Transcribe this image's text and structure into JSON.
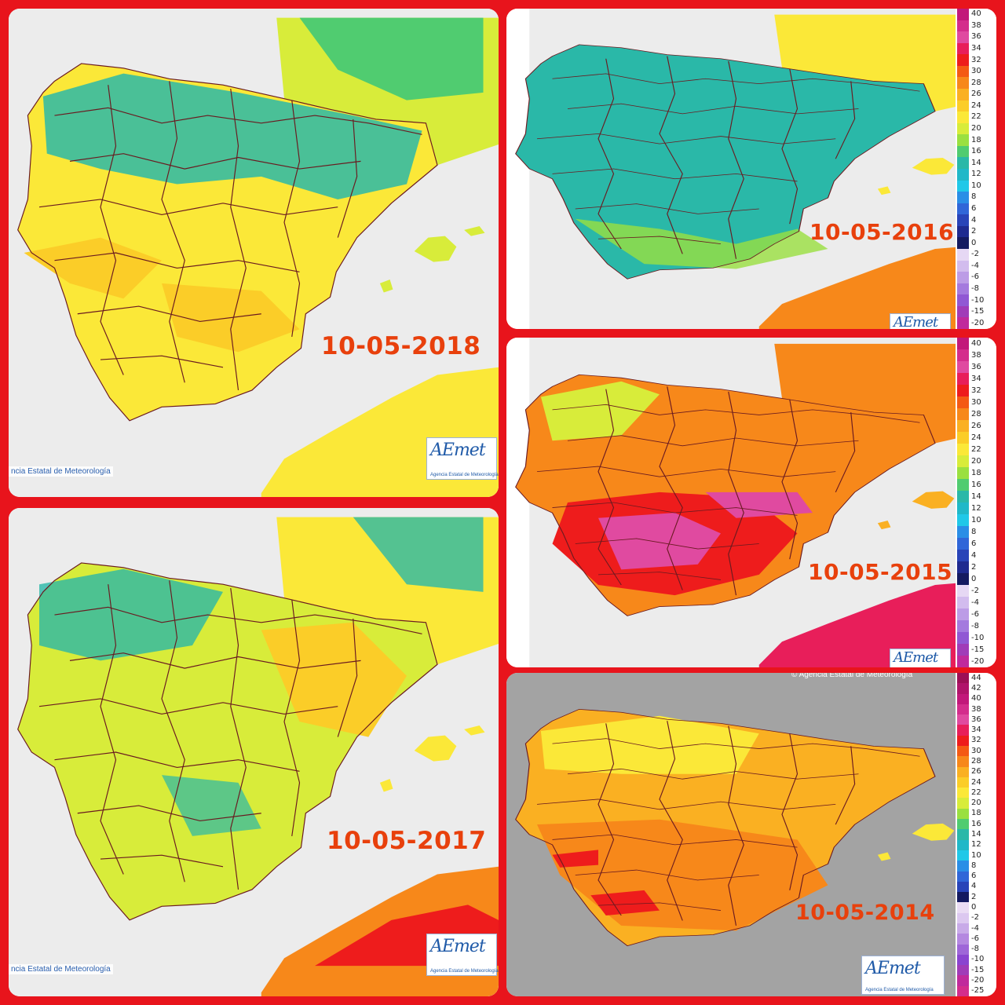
{
  "panels": {
    "p2018": {
      "date": "10-05-2018",
      "credit": "ncia Estatal de Meteorología",
      "logo": "AEmet",
      "logo_sub": "Agencia Estatal de Meteorología"
    },
    "p2016": {
      "date": "10-05-2016",
      "logo": "AEmet"
    },
    "p2015": {
      "date": "10-05-2015",
      "logo": "AEmet"
    },
    "p2017": {
      "date": "10-05-2017",
      "credit": "ncia Estatal de Meteorología",
      "logo": "AEmet",
      "logo_sub": "Agencia Estatal de Meteorología"
    },
    "p2014": {
      "date": "10-05-2014",
      "credit": "© Agencia Estatal de Meteorología",
      "logo": "AEmet",
      "logo_sub": "Agencia Estatal de Meteorología"
    }
  },
  "legend_a": {
    "labels": [
      "40",
      "38",
      "36",
      "34",
      "32",
      "30",
      "28",
      "26",
      "24",
      "22",
      "20",
      "18",
      "16",
      "14",
      "12",
      "10",
      "8",
      "6",
      "4",
      "2",
      "0",
      "-2",
      "-4",
      "-6",
      "-8",
      "-10",
      "-15",
      "-20"
    ],
    "colors": [
      "#c2187a",
      "#d42d8c",
      "#e04aa0",
      "#e81e5a",
      "#ee1c1c",
      "#f45a14",
      "#f7881a",
      "#fab022",
      "#fbcd28",
      "#fbe838",
      "#d8ec3a",
      "#9ae040",
      "#50cc70",
      "#2ab8a8",
      "#20b8c8",
      "#20c8e8",
      "#2a8ee6",
      "#3066d8",
      "#2844b8",
      "#1e2a90",
      "#141a60",
      "#e6d8f4",
      "#d2bcee",
      "#bc9ce6",
      "#a47ade",
      "#9058d4",
      "#a03cb8",
      "#c02a9c"
    ]
  },
  "legend_b": {
    "labels": [
      "44",
      "42",
      "40",
      "38",
      "36",
      "34",
      "32",
      "30",
      "28",
      "26",
      "24",
      "22",
      "20",
      "18",
      "16",
      "14",
      "12",
      "10",
      "8",
      "6",
      "4",
      "2",
      "0",
      "-2",
      "-4",
      "-6",
      "-8",
      "-10",
      "-15",
      "-20",
      "-25"
    ],
    "colors": [
      "#9c1056",
      "#b0146a",
      "#c2187a",
      "#d42d8c",
      "#e04aa0",
      "#e81e5a",
      "#ee1c1c",
      "#f45a14",
      "#f7881a",
      "#fab022",
      "#fbcd28",
      "#fbe838",
      "#d8ec3a",
      "#9ae040",
      "#50cc70",
      "#2ab8a8",
      "#20b8c8",
      "#20c8e8",
      "#2a8ee6",
      "#3066d8",
      "#2844b8",
      "#141a60",
      "#eadcf4",
      "#dcc8f0",
      "#c8aae8",
      "#b488e0",
      "#9e66d8",
      "#8a44d0",
      "#a03cb8",
      "#c02a9c",
      "#d42d8c"
    ]
  },
  "colors": {
    "frame": "#e8141c",
    "date_text": "#e8400c",
    "sea_light": "#ececec",
    "sea_grey": "#a3a3a3",
    "border_line": "#6a1a20"
  }
}
